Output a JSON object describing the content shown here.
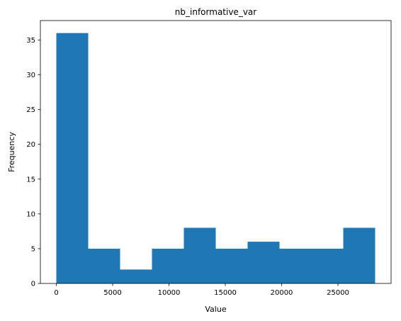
{
  "chart_data": {
    "type": "bar",
    "title": "nb_informative_var",
    "xlabel": "Value",
    "ylabel": "Frequency",
    "bin_edges": [
      0,
      2830,
      5660,
      8490,
      11320,
      14150,
      16980,
      19810,
      22640,
      25470,
      28300
    ],
    "values": [
      36,
      5,
      2,
      5,
      8,
      5,
      6,
      5,
      5,
      8
    ],
    "xlim": [
      -1415,
      29715
    ],
    "ylim": [
      0,
      37.8
    ],
    "xticks": [
      0,
      5000,
      10000,
      15000,
      20000,
      25000
    ],
    "xtick_labels": [
      "0",
      "5000",
      "10000",
      "15000",
      "20000",
      "25000"
    ],
    "yticks": [
      0,
      5,
      10,
      15,
      20,
      25,
      30,
      35
    ],
    "ytick_labels": [
      "0",
      "5",
      "10",
      "15",
      "20",
      "25",
      "30",
      "35"
    ],
    "bar_color": "#1f77b4",
    "grid": false,
    "legend": "none"
  }
}
